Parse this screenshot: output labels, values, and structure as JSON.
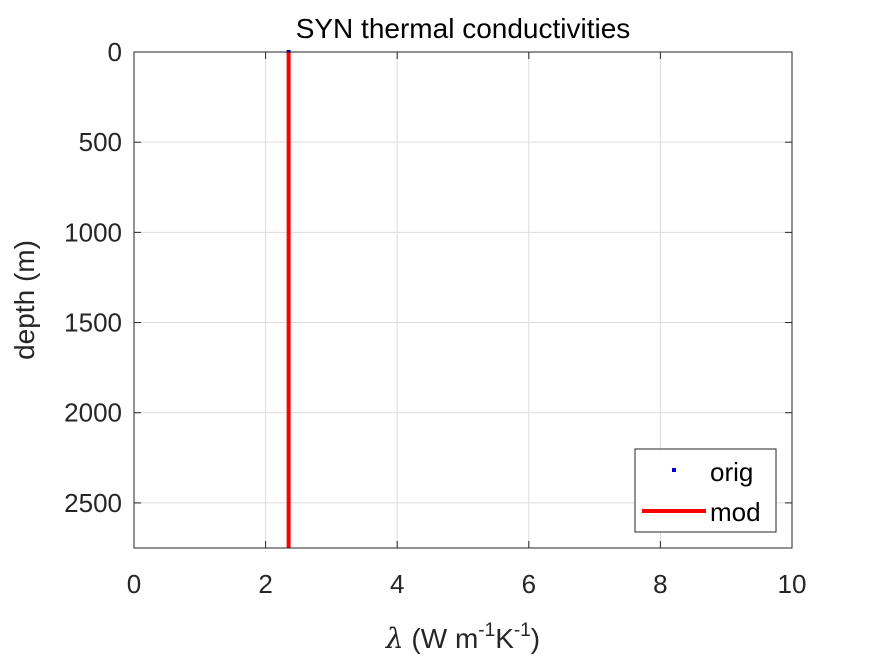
{
  "chart_data": {
    "type": "line",
    "title": "SYN thermal conductivities",
    "xlabel": {
      "symbol": "λ",
      "prefix": " (W m",
      "sup1": "-1",
      "mid": "K",
      "sup2": "-1",
      "suffix": ")"
    },
    "ylabel": "depth (m)",
    "xlim": [
      0,
      10
    ],
    "ylim": [
      0,
      2750
    ],
    "y_reversed": true,
    "grid": true,
    "xticks": [
      0,
      2,
      4,
      6,
      8,
      10
    ],
    "yticks": [
      0,
      500,
      1000,
      1500,
      2000,
      2500
    ],
    "legend_position": "bottom-right",
    "series": [
      {
        "name": "orig",
        "style": "points",
        "color": "#0000cc",
        "x": [
          2.35
        ],
        "y": [
          0
        ]
      },
      {
        "name": "mod",
        "style": "line",
        "color": "#ff0000",
        "x": [
          2.35,
          2.35
        ],
        "y": [
          0,
          2750
        ]
      }
    ]
  }
}
